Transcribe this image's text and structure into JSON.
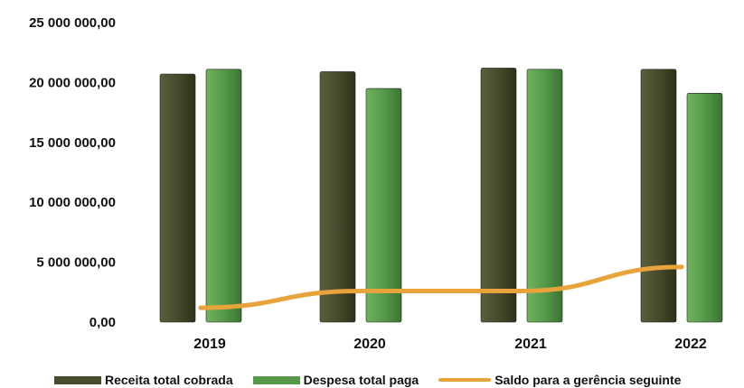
{
  "chart_data": {
    "type": "bar",
    "categories": [
      "2019",
      "2020",
      "2021",
      "2022"
    ],
    "series": [
      {
        "name": "Receita total cobrada",
        "kind": "bar",
        "color": "#474a2c",
        "values": [
          20700000,
          20900000,
          21200000,
          21100000
        ]
      },
      {
        "name": "Despesa total paga",
        "kind": "bar",
        "color": "#56994a",
        "values": [
          21100000,
          19500000,
          21100000,
          19100000
        ]
      },
      {
        "name": "Saldo para a gerência seguinte",
        "kind": "line",
        "color": "#e8a33a",
        "values": [
          1200000,
          2600000,
          2600000,
          4600000
        ]
      }
    ],
    "y_ticks": [
      "0,00",
      "5 000 000,00",
      "10 000 000,00",
      "15 000 000,00",
      "20 000 000,00",
      "25 000 000,00"
    ],
    "ylim": [
      0,
      25000000
    ],
    "grid": false,
    "legend_position": "bottom"
  }
}
